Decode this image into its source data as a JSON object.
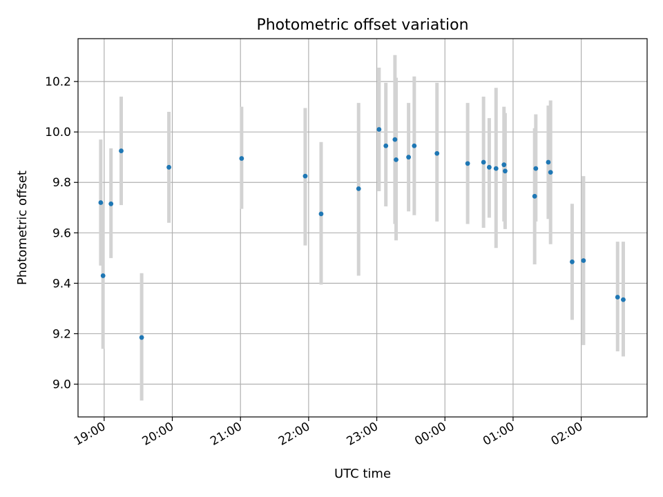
{
  "chart_data": {
    "type": "scatter",
    "title": "Photometric offset variation",
    "xlabel": "UTC time",
    "ylabel": "Photometric offset",
    "grid": true,
    "legend": "none",
    "xlim": [
      "18:37",
      "02:58"
    ],
    "ylim": [
      8.87,
      10.37
    ],
    "x_ticks": [
      "19:00",
      "20:00",
      "21:00",
      "22:00",
      "23:00",
      "00:00",
      "01:00",
      "02:00"
    ],
    "y_ticks": [
      "9.0",
      "9.2",
      "9.4",
      "9.6",
      "9.8",
      "10.0",
      "10.2"
    ],
    "colors": {
      "point": "#1f77b4",
      "errorbar": "#d3d3d3",
      "grid": "#b0b0b0"
    },
    "points": [
      {
        "t": "18:57",
        "y": 9.72,
        "lo": 9.47,
        "hi": 9.97
      },
      {
        "t": "18:59",
        "y": 9.43,
        "lo": 9.14,
        "hi": 9.72
      },
      {
        "t": "19:06",
        "y": 9.715,
        "lo": 9.5,
        "hi": 9.935
      },
      {
        "t": "19:15",
        "y": 9.925,
        "lo": 9.71,
        "hi": 10.14
      },
      {
        "t": "19:33",
        "y": 9.185,
        "lo": 8.935,
        "hi": 9.44
      },
      {
        "t": "19:57",
        "y": 9.86,
        "lo": 9.64,
        "hi": 10.08
      },
      {
        "t": "21:01",
        "y": 9.895,
        "lo": 9.695,
        "hi": 10.1
      },
      {
        "t": "21:57",
        "y": 9.825,
        "lo": 9.55,
        "hi": 10.095
      },
      {
        "t": "22:11",
        "y": 9.675,
        "lo": 9.395,
        "hi": 9.96
      },
      {
        "t": "22:44",
        "y": 9.775,
        "lo": 9.43,
        "hi": 10.115
      },
      {
        "t": "23:02",
        "y": 10.01,
        "lo": 9.765,
        "hi": 10.255
      },
      {
        "t": "23:08",
        "y": 9.945,
        "lo": 9.705,
        "hi": 10.195
      },
      {
        "t": "23:16",
        "y": 9.97,
        "lo": 9.635,
        "hi": 10.305
      },
      {
        "t": "23:17",
        "y": 9.89,
        "lo": 9.57,
        "hi": 10.215
      },
      {
        "t": "23:28",
        "y": 9.9,
        "lo": 9.685,
        "hi": 10.115
      },
      {
        "t": "23:33",
        "y": 9.945,
        "lo": 9.67,
        "hi": 10.22
      },
      {
        "t": "23:53",
        "y": 9.915,
        "lo": 9.645,
        "hi": 10.195
      },
      {
        "t": "00:20",
        "y": 9.875,
        "lo": 9.635,
        "hi": 10.115
      },
      {
        "t": "00:34",
        "y": 9.88,
        "lo": 9.62,
        "hi": 10.14
      },
      {
        "t": "00:39",
        "y": 9.86,
        "lo": 9.66,
        "hi": 10.055
      },
      {
        "t": "00:45",
        "y": 9.855,
        "lo": 9.54,
        "hi": 10.175
      },
      {
        "t": "00:52",
        "y": 9.87,
        "lo": 9.645,
        "hi": 10.1
      },
      {
        "t": "00:53",
        "y": 9.845,
        "lo": 9.615,
        "hi": 10.075
      },
      {
        "t": "01:19",
        "y": 9.745,
        "lo": 9.475,
        "hi": 10.015
      },
      {
        "t": "01:20",
        "y": 9.855,
        "lo": 9.645,
        "hi": 10.07
      },
      {
        "t": "01:31",
        "y": 9.88,
        "lo": 9.655,
        "hi": 10.105
      },
      {
        "t": "01:33",
        "y": 9.84,
        "lo": 9.555,
        "hi": 10.125
      },
      {
        "t": "01:52",
        "y": 9.485,
        "lo": 9.255,
        "hi": 9.715
      },
      {
        "t": "02:02",
        "y": 9.49,
        "lo": 9.155,
        "hi": 9.825
      },
      {
        "t": "02:32",
        "y": 9.345,
        "lo": 9.13,
        "hi": 9.565
      },
      {
        "t": "02:37",
        "y": 9.335,
        "lo": 9.11,
        "hi": 9.565
      }
    ]
  }
}
